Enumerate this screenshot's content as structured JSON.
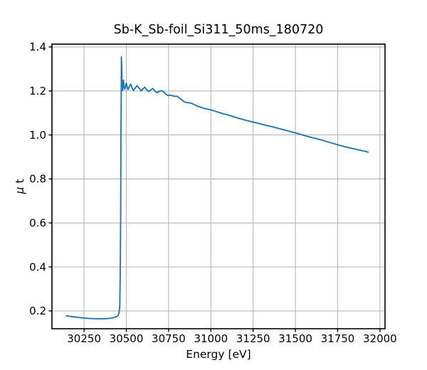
{
  "figure": {
    "background": "#ffffff"
  },
  "chart_data": {
    "type": "line",
    "title": "Sb-K_Sb-foil_Si311_50ms_180720",
    "xlabel": "Energy [eV]",
    "ylabel": "μ t",
    "xlim": [
      30060,
      32030
    ],
    "ylim": [
      0.119,
      1.413
    ],
    "xticks": [
      30250,
      30500,
      30750,
      31000,
      31250,
      31500,
      31750,
      32000
    ],
    "xtick_labels": [
      "30250",
      "30500",
      "30750",
      "31000",
      "31250",
      "31500",
      "31750",
      "32000"
    ],
    "yticks": [
      0.2,
      0.4,
      0.6,
      0.8,
      1.0,
      1.2,
      1.4
    ],
    "ytick_labels": [
      "0.2",
      "0.4",
      "0.6",
      "0.8",
      "1.0",
      "1.2",
      "1.4"
    ],
    "grid": true,
    "grid_color": "#b0b0b0",
    "spine_color": "#000000",
    "line_color": "#1f77b4",
    "legend": "none",
    "series": [
      {
        "name": "mu_t_vs_energy",
        "points": [
          [
            30146,
            0.178
          ],
          [
            30180,
            0.174
          ],
          [
            30220,
            0.17
          ],
          [
            30260,
            0.167
          ],
          [
            30300,
            0.165
          ],
          [
            30340,
            0.164
          ],
          [
            30380,
            0.165
          ],
          [
            30410,
            0.167
          ],
          [
            30432,
            0.171
          ],
          [
            30448,
            0.177
          ],
          [
            30456,
            0.188
          ],
          [
            30461,
            0.22
          ],
          [
            30464,
            0.38
          ],
          [
            30466,
            0.62
          ],
          [
            30468,
            0.95
          ],
          [
            30470,
            1.22
          ],
          [
            30471,
            1.355
          ],
          [
            30473,
            1.3
          ],
          [
            30475,
            1.225
          ],
          [
            30478,
            1.202
          ],
          [
            30481,
            1.232
          ],
          [
            30483,
            1.25
          ],
          [
            30486,
            1.222
          ],
          [
            30490,
            1.208
          ],
          [
            30496,
            1.225
          ],
          [
            30500,
            1.235
          ],
          [
            30505,
            1.218
          ],
          [
            30510,
            1.206
          ],
          [
            30517,
            1.219
          ],
          [
            30525,
            1.231
          ],
          [
            30533,
            1.216
          ],
          [
            30542,
            1.202
          ],
          [
            30552,
            1.213
          ],
          [
            30563,
            1.224
          ],
          [
            30575,
            1.213
          ],
          [
            30588,
            1.2
          ],
          [
            30598,
            1.209
          ],
          [
            30609,
            1.217
          ],
          [
            30620,
            1.207
          ],
          [
            30631,
            1.197
          ],
          [
            30643,
            1.204
          ],
          [
            30656,
            1.211
          ],
          [
            30668,
            1.201
          ],
          [
            30680,
            1.192
          ],
          [
            30694,
            1.198
          ],
          [
            30708,
            1.202
          ],
          [
            30722,
            1.194
          ],
          [
            30734,
            1.185
          ],
          [
            30746,
            1.179
          ],
          [
            30758,
            1.181
          ],
          [
            30770,
            1.179
          ],
          [
            30785,
            1.176
          ],
          [
            30800,
            1.176
          ],
          [
            30815,
            1.167
          ],
          [
            30830,
            1.157
          ],
          [
            30845,
            1.15
          ],
          [
            30858,
            1.147
          ],
          [
            30872,
            1.146
          ],
          [
            30886,
            1.144
          ],
          [
            30900,
            1.139
          ],
          [
            30920,
            1.131
          ],
          [
            30940,
            1.126
          ],
          [
            30960,
            1.121
          ],
          [
            30980,
            1.117
          ],
          [
            31000,
            1.114
          ],
          [
            31020,
            1.109
          ],
          [
            31045,
            1.103
          ],
          [
            31070,
            1.097
          ],
          [
            31100,
            1.091
          ],
          [
            31130,
            1.084
          ],
          [
            31160,
            1.077
          ],
          [
            31200,
            1.068
          ],
          [
            31240,
            1.06
          ],
          [
            31280,
            1.053
          ],
          [
            31320,
            1.045
          ],
          [
            31360,
            1.038
          ],
          [
            31400,
            1.03
          ],
          [
            31440,
            1.022
          ],
          [
            31480,
            1.013
          ],
          [
            31520,
            1.005
          ],
          [
            31560,
            0.996
          ],
          [
            31600,
            0.988
          ],
          [
            31640,
            0.98
          ],
          [
            31680,
            0.971
          ],
          [
            31720,
            0.962
          ],
          [
            31760,
            0.953
          ],
          [
            31800,
            0.945
          ],
          [
            31840,
            0.938
          ],
          [
            31880,
            0.931
          ],
          [
            31910,
            0.926
          ],
          [
            31930,
            0.922
          ]
        ]
      }
    ]
  }
}
